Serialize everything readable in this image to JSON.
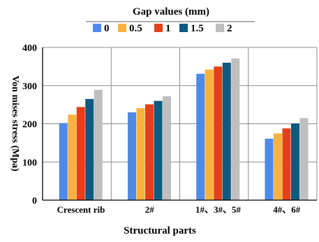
{
  "chart_data": {
    "type": "bar",
    "legend_title": "Gap values (mm)",
    "legend_placement": "top-center",
    "xlabel": "Structural parts",
    "ylabel": "Von mises stress (Mpa)",
    "ylim": [
      0,
      400
    ],
    "yticks": [
      0,
      100,
      200,
      300,
      400
    ],
    "grid": true,
    "categories": [
      "Crescent rib",
      "2#",
      "1#、3#、5#",
      "4#、6#"
    ],
    "series": [
      {
        "name": "0",
        "color": "#4e8ae6",
        "values": [
          202,
          230,
          331,
          161
        ]
      },
      {
        "name": "0.5",
        "color": "#f9b23f",
        "values": [
          224,
          241,
          342,
          175
        ]
      },
      {
        "name": "1",
        "color": "#e2421b",
        "values": [
          244,
          251,
          350,
          188
        ]
      },
      {
        "name": "1.5",
        "color": "#0f5a80",
        "values": [
          265,
          260,
          360,
          201
        ]
      },
      {
        "name": "2",
        "color": "#bfbfbf",
        "values": [
          289,
          272,
          371,
          215
        ]
      }
    ]
  }
}
